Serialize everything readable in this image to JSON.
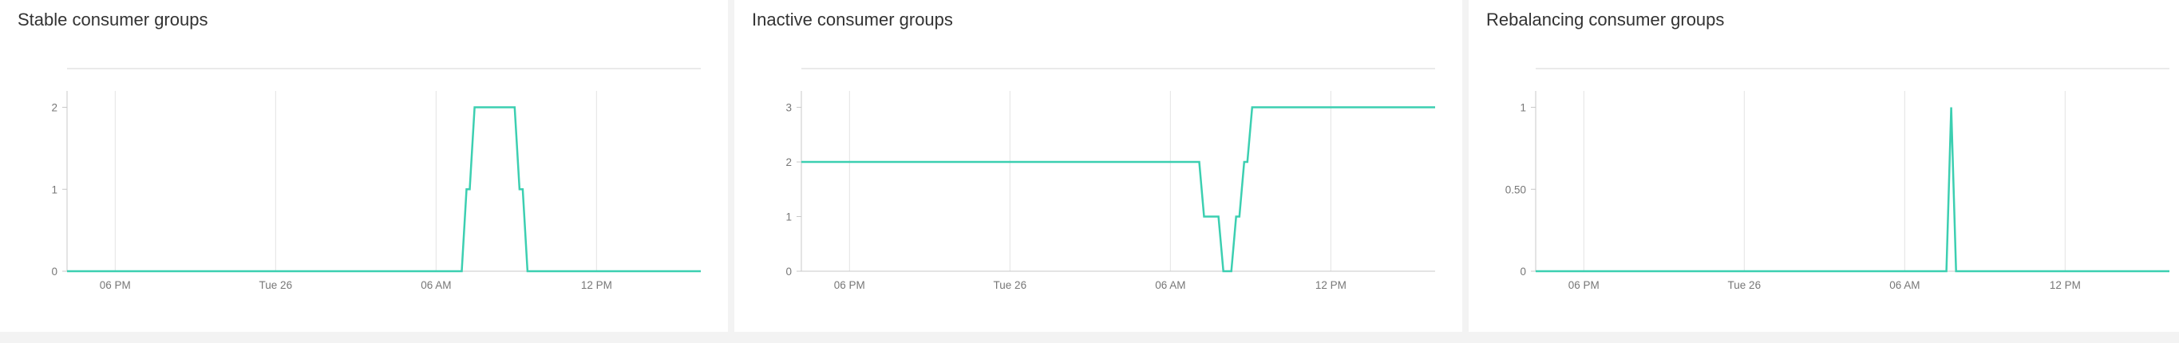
{
  "colors": {
    "series": "#3ccfb1",
    "grid": "#e3e3e3",
    "axis": "#c8c8c8",
    "panel_background": "#ffffff",
    "page_background": "#f3f3f3"
  },
  "panels": [
    {
      "title": "Stable consumer groups",
      "menu_icon": "none"
    },
    {
      "title": "Inactive consumer groups",
      "menu_icon": "none"
    },
    {
      "title": "Rebalancing consumer groups",
      "menu_icon": "none"
    }
  ],
  "chart_data": [
    {
      "type": "line",
      "title": "Stable consumer groups",
      "xlabel": "",
      "ylabel": "",
      "x_unit": "hours",
      "x_range": [
        0,
        39.5
      ],
      "x_ticks": [
        {
          "value": 3,
          "label": "06 PM"
        },
        {
          "value": 13,
          "label": "Tue 26"
        },
        {
          "value": 23,
          "label": "06 AM"
        },
        {
          "value": 33,
          "label": "12 PM"
        }
      ],
      "ylim": [
        0,
        2.2
      ],
      "y_ticks": [
        {
          "value": 0,
          "label": "0"
        },
        {
          "value": 1,
          "label": "1"
        },
        {
          "value": 2,
          "label": "2"
        }
      ],
      "grid": "vertical",
      "legend": "none",
      "series": [
        {
          "x": [
            0,
            24.6,
            24.9,
            25.1,
            25.4,
            27.9,
            28.2,
            28.4,
            28.7,
            39.5
          ],
          "values": [
            0,
            0,
            1,
            1,
            2,
            2,
            1,
            1,
            0,
            0
          ]
        }
      ]
    },
    {
      "type": "line",
      "title": "Inactive consumer groups",
      "xlabel": "",
      "ylabel": "",
      "x_unit": "hours",
      "x_range": [
        0,
        39.5
      ],
      "x_ticks": [
        {
          "value": 3,
          "label": "06 PM"
        },
        {
          "value": 13,
          "label": "Tue 26"
        },
        {
          "value": 23,
          "label": "06 AM"
        },
        {
          "value": 33,
          "label": "12 PM"
        }
      ],
      "ylim": [
        0,
        3.3
      ],
      "y_ticks": [
        {
          "value": 0,
          "label": "0"
        },
        {
          "value": 1,
          "label": "1"
        },
        {
          "value": 2,
          "label": "2"
        },
        {
          "value": 3,
          "label": "3"
        }
      ],
      "grid": "vertical",
      "legend": "none",
      "series": [
        {
          "x": [
            0,
            24.8,
            25.1,
            26.0,
            26.3,
            26.8,
            27.1,
            27.3,
            27.6,
            27.8,
            28.1,
            39.5
          ],
          "values": [
            2,
            2,
            1,
            1,
            0,
            0,
            1,
            1,
            2,
            2,
            3,
            3
          ]
        }
      ]
    },
    {
      "type": "line",
      "title": "Rebalancing consumer groups",
      "xlabel": "",
      "ylabel": "",
      "x_unit": "hours",
      "x_range": [
        0,
        39.5
      ],
      "x_ticks": [
        {
          "value": 3,
          "label": "06 PM"
        },
        {
          "value": 13,
          "label": "Tue 26"
        },
        {
          "value": 23,
          "label": "06 AM"
        },
        {
          "value": 33,
          "label": "12 PM"
        }
      ],
      "ylim": [
        0,
        1.1
      ],
      "y_ticks": [
        {
          "value": 0,
          "label": "0"
        },
        {
          "value": 0.5,
          "label": "0.50"
        },
        {
          "value": 1,
          "label": "1"
        }
      ],
      "grid": "vertical",
      "legend": "none",
      "series": [
        {
          "x": [
            0,
            25.6,
            25.9,
            26.2,
            39.5
          ],
          "values": [
            0,
            0,
            1,
            0,
            0
          ]
        }
      ]
    }
  ]
}
